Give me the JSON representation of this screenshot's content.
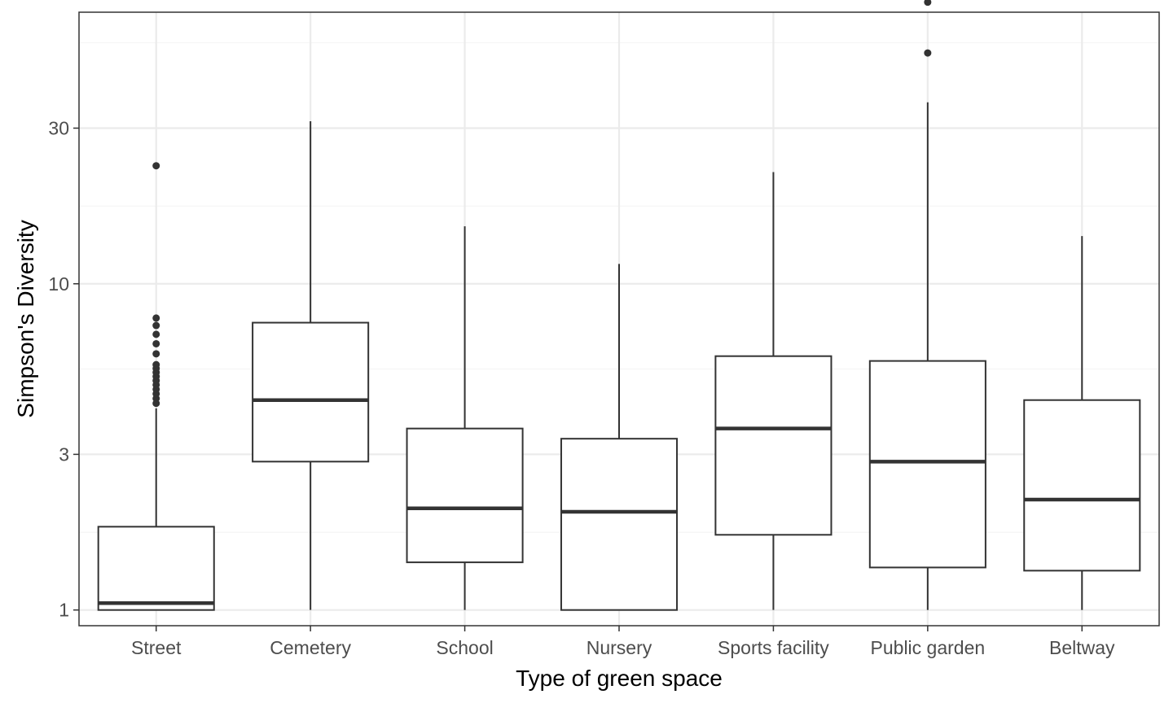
{
  "chart_data": {
    "type": "boxplot",
    "title": "",
    "xlabel": "Type of green space",
    "ylabel": "Simpson's Diversity",
    "y_scale": "log10",
    "ylim": [
      0.895,
      68
    ],
    "y_ticks": [
      1,
      3,
      10,
      30
    ],
    "y_tick_labels": [
      "1",
      "3",
      "10",
      "30"
    ],
    "y_minor_ticks": [
      1.73,
      5.48,
      17.3,
      54.8
    ],
    "grid": true,
    "legend": "none",
    "categories": [
      "Street",
      "Cemetery",
      "School",
      "Nursery",
      "Sports facility",
      "Public garden",
      "Beltway"
    ],
    "boxes": [
      {
        "category": "Street",
        "whisker_low": 1.0,
        "q1": 1.0,
        "median": 1.05,
        "q3": 1.8,
        "whisker_high": 4.15,
        "outliers": [
          4.3,
          4.45,
          4.6,
          4.75,
          4.9,
          5.05,
          5.2,
          5.35,
          5.5,
          5.65,
          6.1,
          6.55,
          7.0,
          7.45,
          7.85,
          23.0
        ]
      },
      {
        "category": "Cemetery",
        "whisker_low": 1.0,
        "q1": 2.85,
        "median": 4.4,
        "q3": 7.6,
        "whisker_high": 31.5,
        "outliers": []
      },
      {
        "category": "School",
        "whisker_low": 1.0,
        "q1": 1.4,
        "median": 2.05,
        "q3": 3.6,
        "whisker_high": 15.0,
        "outliers": []
      },
      {
        "category": "Nursery",
        "whisker_low": 1.0,
        "q1": 1.0,
        "median": 2.0,
        "q3": 3.35,
        "whisker_high": 11.5,
        "outliers": []
      },
      {
        "category": "Sports facility",
        "whisker_low": 1.0,
        "q1": 1.7,
        "median": 3.6,
        "q3": 6.0,
        "whisker_high": 22.0,
        "outliers": []
      },
      {
        "category": "Public garden",
        "whisker_low": 1.0,
        "q1": 1.35,
        "median": 2.85,
        "q3": 5.8,
        "whisker_high": 36.0,
        "outliers": [
          51.0,
          73.0
        ]
      },
      {
        "category": "Beltway",
        "whisker_low": 1.0,
        "q1": 1.32,
        "median": 2.18,
        "q3": 4.4,
        "whisker_high": 14.0,
        "outliers": []
      }
    ],
    "colors": {
      "panel_border": "#333333",
      "grid_major": "#ebebeb",
      "grid_minor": "#f5f5f5",
      "box_stroke": "#333333",
      "box_fill": "#ffffff",
      "median": "#333333",
      "outlier": "#333333"
    }
  }
}
